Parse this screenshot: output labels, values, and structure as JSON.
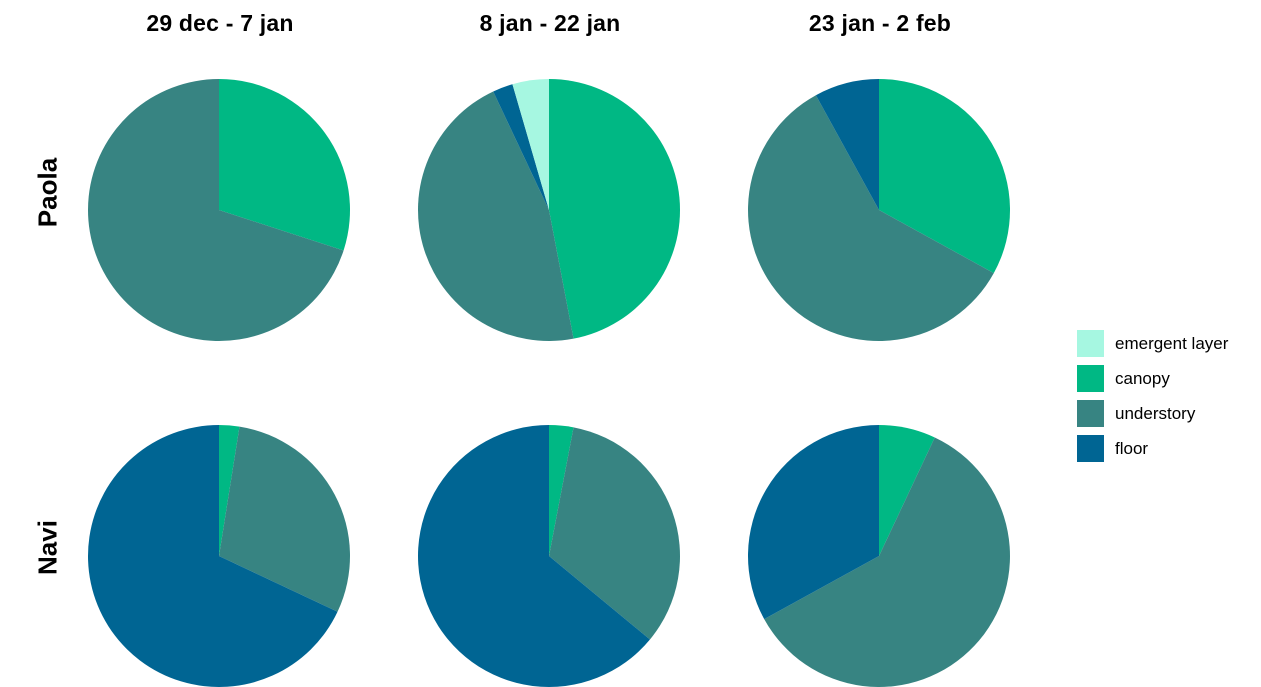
{
  "chart_data": {
    "type": "pie",
    "columns": [
      "29 dec - 7 jan",
      "8 jan - 22 jan",
      "23 jan - 2 feb"
    ],
    "rows": [
      "Paola",
      "Navi"
    ],
    "legend": [
      {
        "name": "emergent layer",
        "color": "#a6f7e1"
      },
      {
        "name": "canopy",
        "color": "#00b884"
      },
      {
        "name": "understory",
        "color": "#378482"
      },
      {
        "name": "floor",
        "color": "#006593"
      }
    ],
    "legend_position": "right",
    "pies": [
      {
        "row": "Paola",
        "column": "29 dec - 7 jan",
        "values": {
          "emergent layer": 0,
          "canopy": 30,
          "understory": 70,
          "floor": 0
        }
      },
      {
        "row": "Paola",
        "column": "8 jan - 22 jan",
        "values": {
          "emergent layer": 4.5,
          "canopy": 47,
          "understory": 46,
          "floor": 2.5
        }
      },
      {
        "row": "Paola",
        "column": "23 jan - 2 feb",
        "values": {
          "emergent layer": 0,
          "canopy": 33,
          "understory": 59,
          "floor": 8
        }
      },
      {
        "row": "Navi",
        "column": "29 dec - 7 jan",
        "values": {
          "emergent layer": 0,
          "canopy": 2.5,
          "understory": 29.5,
          "floor": 68
        }
      },
      {
        "row": "Navi",
        "column": "8 jan - 22 jan",
        "values": {
          "emergent layer": 0,
          "canopy": 3,
          "understory": 33,
          "floor": 64
        }
      },
      {
        "row": "Navi",
        "column": "23 jan - 2 feb",
        "values": {
          "emergent layer": 0,
          "canopy": 7,
          "understory": 60,
          "floor": 33
        }
      }
    ]
  }
}
